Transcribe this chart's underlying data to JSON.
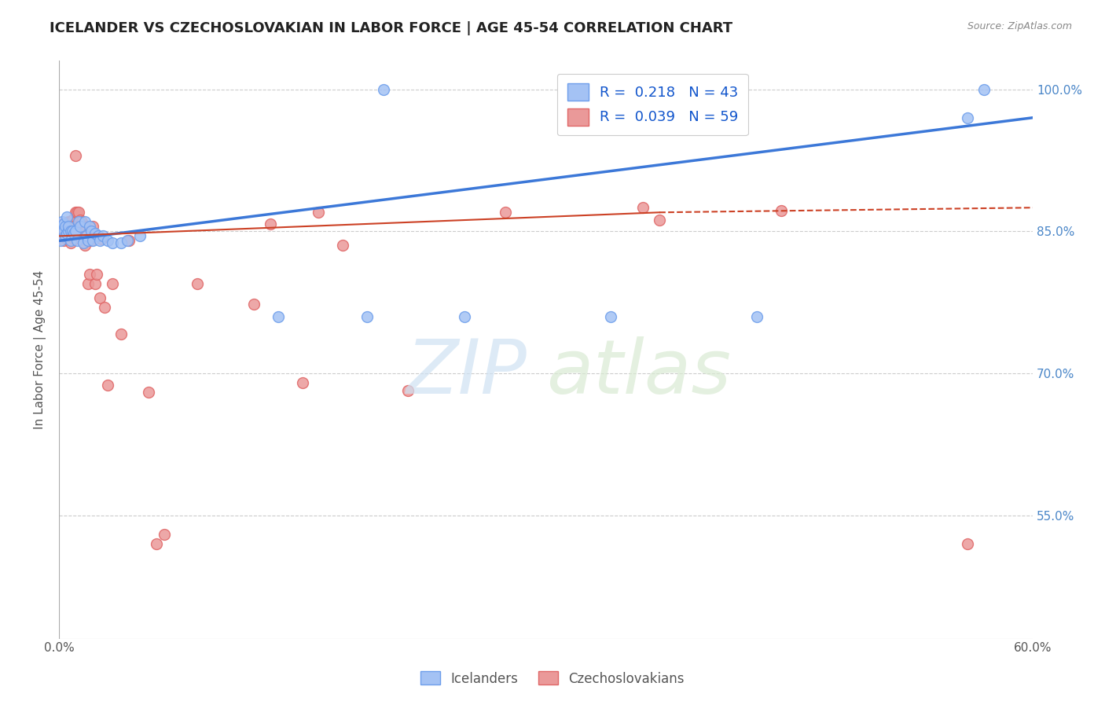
{
  "title": "ICELANDER VS CZECHOSLOVAKIAN IN LABOR FORCE | AGE 45-54 CORRELATION CHART",
  "source": "Source: ZipAtlas.com",
  "ylabel": "In Labor Force | Age 45-54",
  "x_min": 0.0,
  "x_max": 0.6,
  "y_min": 0.42,
  "y_max": 1.03,
  "x_ticks": [
    0.0,
    0.1,
    0.2,
    0.3,
    0.4,
    0.5,
    0.6
  ],
  "x_tick_labels": [
    "0.0%",
    "",
    "",
    "",
    "",
    "",
    "60.0%"
  ],
  "y_ticks": [
    0.55,
    0.7,
    0.85,
    1.0
  ],
  "y_tick_labels": [
    "55.0%",
    "70.0%",
    "85.0%",
    "100.0%"
  ],
  "icelander_color": "#a4c2f4",
  "czechoslovakian_color": "#ea9999",
  "icelander_edge_color": "#6d9eeb",
  "czechoslovakian_edge_color": "#e06666",
  "icelander_line_color": "#3c78d8",
  "czechoslovakian_line_color": "#cc4125",
  "R_icelander": 0.218,
  "N_icelander": 43,
  "R_czechoslovakian": 0.039,
  "N_czechoslovakian": 59,
  "icelander_x": [
    0.001,
    0.002,
    0.002,
    0.003,
    0.003,
    0.004,
    0.004,
    0.005,
    0.005,
    0.006,
    0.006,
    0.007,
    0.007,
    0.008,
    0.009,
    0.01,
    0.011,
    0.012,
    0.013,
    0.015,
    0.016,
    0.017,
    0.018,
    0.019,
    0.02,
    0.021,
    0.022,
    0.024,
    0.025,
    0.027,
    0.03,
    0.033,
    0.038,
    0.042,
    0.05,
    0.135,
    0.19,
    0.2,
    0.25,
    0.34,
    0.43,
    0.56,
    0.57
  ],
  "icelander_y": [
    0.84,
    0.855,
    0.86,
    0.858,
    0.85,
    0.855,
    0.845,
    0.865,
    0.848,
    0.85,
    0.855,
    0.85,
    0.84,
    0.85,
    0.848,
    0.85,
    0.84,
    0.86,
    0.855,
    0.838,
    0.86,
    0.845,
    0.84,
    0.855,
    0.85,
    0.84,
    0.848,
    0.845,
    0.84,
    0.845,
    0.84,
    0.838,
    0.838,
    0.84,
    0.845,
    0.76,
    0.76,
    1.0,
    0.76,
    0.76,
    0.76,
    0.97,
    1.0
  ],
  "czechoslovakian_x": [
    0.001,
    0.002,
    0.002,
    0.003,
    0.003,
    0.003,
    0.004,
    0.004,
    0.005,
    0.005,
    0.005,
    0.006,
    0.006,
    0.007,
    0.007,
    0.007,
    0.008,
    0.008,
    0.008,
    0.009,
    0.009,
    0.01,
    0.01,
    0.011,
    0.012,
    0.013,
    0.013,
    0.014,
    0.015,
    0.016,
    0.016,
    0.018,
    0.019,
    0.02,
    0.021,
    0.022,
    0.023,
    0.025,
    0.026,
    0.028,
    0.03,
    0.033,
    0.038,
    0.043,
    0.055,
    0.06,
    0.065,
    0.085,
    0.12,
    0.13,
    0.15,
    0.16,
    0.175,
    0.215,
    0.275,
    0.36,
    0.37,
    0.445,
    0.56
  ],
  "czechoslovakian_y": [
    0.855,
    0.858,
    0.845,
    0.85,
    0.855,
    0.84,
    0.855,
    0.85,
    0.858,
    0.85,
    0.842,
    0.86,
    0.848,
    0.86,
    0.845,
    0.838,
    0.862,
    0.853,
    0.848,
    0.855,
    0.842,
    0.93,
    0.87,
    0.87,
    0.87,
    0.862,
    0.848,
    0.86,
    0.855,
    0.835,
    0.85,
    0.795,
    0.805,
    0.84,
    0.855,
    0.795,
    0.805,
    0.78,
    0.842,
    0.77,
    0.688,
    0.795,
    0.742,
    0.84,
    0.68,
    0.52,
    0.53,
    0.795,
    0.773,
    0.858,
    0.69,
    0.87,
    0.835,
    0.682,
    0.87,
    0.875,
    0.862,
    0.872,
    0.52
  ]
}
